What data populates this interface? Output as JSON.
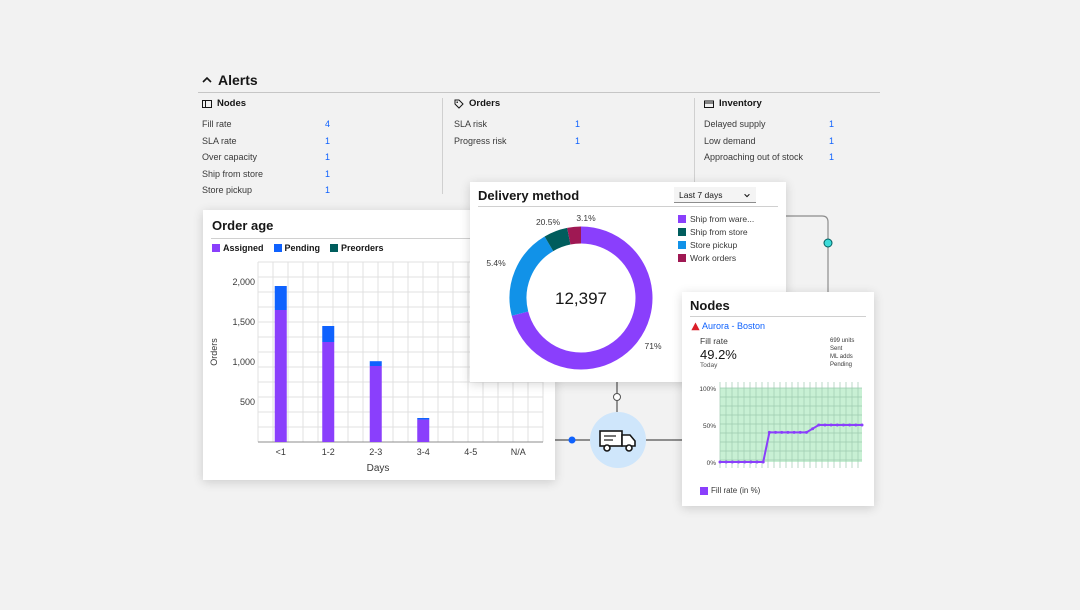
{
  "alerts": {
    "title": "Alerts",
    "columns": [
      {
        "heading": "Nodes",
        "icon": "nodes-icon",
        "rows": [
          {
            "label": "Fill rate",
            "value": "4"
          },
          {
            "label": "SLA rate",
            "value": "1"
          },
          {
            "label": "Over capacity",
            "value": "1"
          },
          {
            "label": "Ship from store",
            "value": "1"
          },
          {
            "label": "Store pickup",
            "value": "1"
          }
        ]
      },
      {
        "heading": "Orders",
        "icon": "tag-icon",
        "rows": [
          {
            "label": "SLA risk",
            "value": "1"
          },
          {
            "label": "Progress risk",
            "value": "1"
          }
        ]
      },
      {
        "heading": "Inventory",
        "icon": "inventory-icon",
        "rows": [
          {
            "label": "Delayed supply",
            "value": "1"
          },
          {
            "label": "Low demand",
            "value": "1"
          },
          {
            "label": "Approaching out of stock",
            "value": "1"
          }
        ]
      }
    ]
  },
  "order_age": {
    "title": "Order age",
    "legend": [
      {
        "label": "Assigned",
        "color": "#8a3ffc"
      },
      {
        "label": "Pending",
        "color": "#0f62fe"
      },
      {
        "label": "Preorders",
        "color": "#005d5d"
      }
    ]
  },
  "delivery": {
    "title": "Delivery method",
    "dropdown": "Last 7 days",
    "total": "12,397",
    "legend": [
      {
        "label": "Ship from ware...",
        "color": "#8a3ffc"
      },
      {
        "label": "Ship from store",
        "color": "#005d5d"
      },
      {
        "label": "Store pickup",
        "color": "#1192e8"
      },
      {
        "label": "Work orders",
        "color": "#9f1853"
      }
    ]
  },
  "nodes": {
    "title": "Nodes",
    "node_name": "Aurora - Boston",
    "fill_label": "Fill rate",
    "fill_value": "49.2%",
    "fill_sub": "Today",
    "side_stats": [
      "699 units",
      "Sent",
      "ML adds",
      "Pending"
    ],
    "legend": "Fill rate (in %)",
    "legend_color": "#8a3ffc"
  },
  "chart_data": [
    {
      "type": "bar",
      "title": "Order age",
      "xlabel": "Days",
      "ylabel": "Orders",
      "categories": [
        "<1",
        "1-2",
        "2-3",
        "3-4",
        "4-5",
        "N/A"
      ],
      "series": [
        {
          "name": "Assigned",
          "values": [
            1650,
            1250,
            950,
            280,
            0,
            0
          ]
        },
        {
          "name": "Pending",
          "values": [
            300,
            200,
            60,
            20,
            0,
            0
          ]
        },
        {
          "name": "Preorders",
          "values": [
            0,
            0,
            0,
            0,
            0,
            0
          ]
        }
      ],
      "yticks": [
        "500",
        "1,000",
        "1,500",
        "2,000"
      ],
      "ylim": [
        0,
        2250
      ],
      "grid": true
    },
    {
      "type": "pie",
      "title": "Delivery method",
      "labels": [
        "Ship from ware...",
        "Ship from store",
        "Store pickup",
        "Work orders"
      ],
      "values": [
        71,
        5.4,
        20.5,
        3.1
      ],
      "value_labels": [
        "71%",
        "5.4%",
        "20.5%",
        "3.1%"
      ]
    },
    {
      "type": "line",
      "series": [
        {
          "name": "Fill rate (in %)",
          "values": [
            0,
            0,
            0,
            0,
            0,
            0,
            0,
            0,
            40,
            40,
            40,
            40,
            40,
            40,
            40,
            45,
            50,
            50,
            50,
            50,
            50,
            50,
            50,
            50
          ]
        }
      ],
      "yticks": [
        "0%",
        "50%",
        "100%"
      ],
      "ylim": [
        0,
        100
      ],
      "grid": true
    }
  ]
}
